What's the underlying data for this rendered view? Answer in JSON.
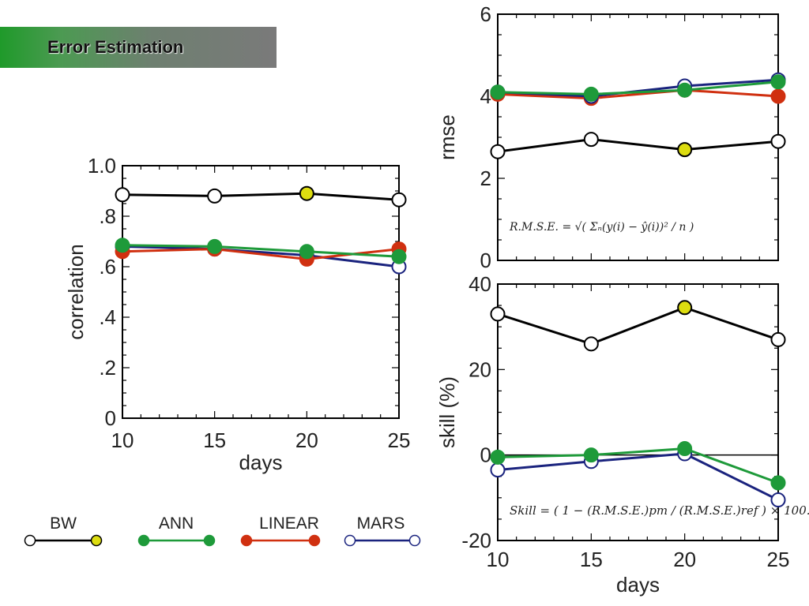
{
  "banner": {
    "title": "Error Estimation"
  },
  "legend": [
    {
      "name": "BW",
      "color": "#000000",
      "start_fill": "#ffffff",
      "end_fill": "#dddd10"
    },
    {
      "name": "ANN",
      "color": "#1e9a3a",
      "start_fill": "#1e9a3a",
      "end_fill": "#1e9a3a"
    },
    {
      "name": "LINEAR",
      "color": "#d03010",
      "start_fill": "#d03010",
      "end_fill": "#d03010"
    },
    {
      "name": "MARS",
      "color": "#1a237e",
      "start_fill": "#ffffff",
      "end_fill": "#ffffff"
    }
  ],
  "chart_data": [
    {
      "type": "line",
      "xlabel": "days",
      "ylabel": "correlation",
      "x": [
        10,
        15,
        20,
        25
      ],
      "xlim": [
        10,
        25
      ],
      "ylim": [
        0,
        1.0
      ],
      "xticks": [
        "10",
        "15",
        "20",
        "25"
      ],
      "yticks": [
        {
          "v": 0,
          "label": "0"
        },
        {
          "v": 0.2,
          "label": ".2"
        },
        {
          "v": 0.4,
          "label": ".4"
        },
        {
          "v": 0.6,
          "label": ".6"
        },
        {
          "v": 0.8,
          "label": ".8"
        },
        {
          "v": 1.0,
          "label": "1.0"
        }
      ],
      "series": [
        {
          "name": "MARS",
          "values": [
            0.68,
            0.67,
            0.645,
            0.6
          ]
        },
        {
          "name": "LINEAR",
          "values": [
            0.66,
            0.67,
            0.63,
            0.67
          ]
        },
        {
          "name": "ANN",
          "values": [
            0.685,
            0.68,
            0.66,
            0.64
          ]
        },
        {
          "name": "BW",
          "values": [
            0.885,
            0.88,
            0.89,
            0.865
          ]
        }
      ]
    },
    {
      "type": "line",
      "xlabel": "",
      "ylabel": "rmse",
      "x": [
        10,
        15,
        20,
        25
      ],
      "xlim": [
        10,
        25
      ],
      "ylim": [
        0,
        6
      ],
      "xticks": [],
      "yticks": [
        {
          "v": 0,
          "label": "0"
        },
        {
          "v": 2,
          "label": "2"
        },
        {
          "v": 4,
          "label": "4"
        },
        {
          "v": 6,
          "label": "6"
        }
      ],
      "annotation": "R.M.S.E. = √( Σₙ(y(i) − ŷ(i))² / n )",
      "series": [
        {
          "name": "LINEAR",
          "values": [
            4.05,
            3.95,
            4.15,
            4.0
          ]
        },
        {
          "name": "MARS",
          "values": [
            4.1,
            4.0,
            4.25,
            4.4
          ]
        },
        {
          "name": "ANN",
          "values": [
            4.1,
            4.05,
            4.15,
            4.35
          ]
        },
        {
          "name": "BW",
          "values": [
            2.65,
            2.95,
            2.7,
            2.9
          ]
        }
      ]
    },
    {
      "type": "line",
      "xlabel": "days",
      "ylabel": "skill (%)",
      "x": [
        10,
        15,
        20,
        25
      ],
      "xlim": [
        10,
        25
      ],
      "ylim": [
        -20,
        40
      ],
      "xticks": [
        "10",
        "15",
        "20",
        "25"
      ],
      "yticks": [
        {
          "v": -20,
          "label": "-20"
        },
        {
          "v": 0,
          "label": "0"
        },
        {
          "v": 20,
          "label": "20"
        },
        {
          "v": 40,
          "label": "40"
        }
      ],
      "zero_line": true,
      "annotation": "Skill = ( 1 − (R.M.S.E.)pm / (R.M.S.E.)ref ) × 100.",
      "series": [
        {
          "name": "MARS",
          "values": [
            -3.5,
            -1.5,
            0.3,
            -10.5
          ]
        },
        {
          "name": "ANN",
          "values": [
            -0.5,
            0.0,
            1.5,
            -6.5
          ]
        },
        {
          "name": "BW",
          "values": [
            33,
            26,
            34.5,
            27
          ]
        }
      ]
    }
  ]
}
